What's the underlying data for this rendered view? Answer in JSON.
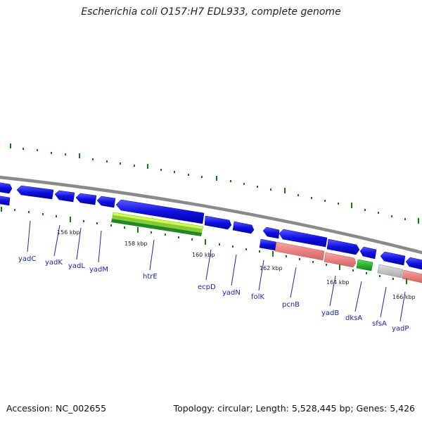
{
  "title": "Escherichia coli O157:H7 EDL933, complete genome",
  "footer": {
    "accession": "Accession: NC_002655",
    "summary": "Topology: circular; Length: 5,528,445 bp; Genes: 5,426"
  },
  "colors": {
    "cds": "#1010e0",
    "rrna": "#ee8888",
    "trna": "#22bb22",
    "misc": "#c4c4c4",
    "gc_skew": "#117711",
    "backbone": "#888888",
    "label": "#2222aa",
    "highlight_outer": "#ccff55",
    "highlight_inner": "#228822"
  },
  "tick_labels": [
    "156 kbp",
    "158 kbp",
    "160 kbp",
    "162 kbp",
    "164 kbp",
    "166 kbp"
  ],
  "gene_labels": [
    "yadC",
    "yadK",
    "yadL",
    "yadM",
    "htrE",
    "ecpD",
    "yadN",
    "folK",
    "pcnB",
    "yadB",
    "dksA",
    "sfsA",
    "yadP"
  ]
}
